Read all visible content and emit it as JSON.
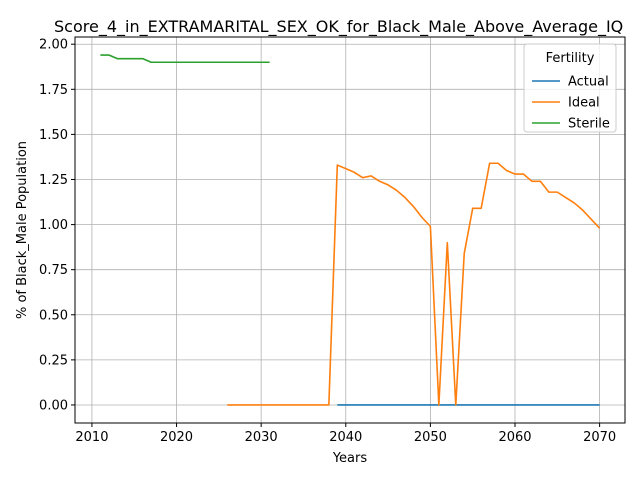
{
  "chart_data": {
    "type": "line",
    "title": "Score_4_in_EXTRAMARITAL_SEX_OK_for_Black_Male_Above_Average_IQ",
    "xlabel": "Years",
    "ylabel": "% of Black_Male Population",
    "xlim": [
      2008,
      2073
    ],
    "ylim": [
      -0.1,
      2.04
    ],
    "xticks": [
      2010,
      2020,
      2030,
      2040,
      2050,
      2060,
      2070
    ],
    "yticks": [
      0.0,
      0.25,
      0.5,
      0.75,
      1.0,
      1.25,
      1.5,
      1.75,
      2.0
    ],
    "ytick_labels": [
      "0.00",
      "0.25",
      "0.50",
      "0.75",
      "1.00",
      "1.25",
      "1.50",
      "1.75",
      "2.00"
    ],
    "grid": true,
    "legend": {
      "title": "Fertility",
      "placement": "top-right"
    },
    "series": [
      {
        "name": "Actual",
        "color": "#1f77b4",
        "x": [
          2039,
          2045,
          2050,
          2055,
          2060,
          2065,
          2070
        ],
        "y": [
          0.0,
          0.0,
          0.0,
          0.0,
          0.0,
          0.0,
          0.0
        ]
      },
      {
        "name": "Ideal",
        "color": "#ff7f0e",
        "x": [
          2026,
          2030,
          2035,
          2038,
          2039,
          2040,
          2041,
          2042,
          2043,
          2044,
          2045,
          2046,
          2047,
          2048,
          2049,
          2050,
          2051,
          2052,
          2053,
          2054,
          2055,
          2056,
          2057,
          2058,
          2059,
          2060,
          2061,
          2062,
          2063,
          2064,
          2065,
          2066,
          2067,
          2068,
          2069,
          2070
        ],
        "y": [
          0.0,
          0.0,
          0.0,
          0.0,
          1.33,
          1.31,
          1.29,
          1.26,
          1.27,
          1.24,
          1.22,
          1.19,
          1.15,
          1.1,
          1.04,
          0.99,
          0.0,
          0.9,
          0.0,
          0.84,
          1.09,
          1.09,
          1.34,
          1.34,
          1.3,
          1.28,
          1.28,
          1.24,
          1.24,
          1.18,
          1.18,
          1.15,
          1.12,
          1.08,
          1.03,
          0.98
        ]
      },
      {
        "name": "Sterile",
        "color": "#2ca02c",
        "x": [
          2011,
          2012,
          2013,
          2014,
          2015,
          2016,
          2017,
          2018,
          2019,
          2020,
          2021,
          2022,
          2023,
          2024,
          2025,
          2026,
          2027,
          2028,
          2029,
          2030,
          2031
        ],
        "y": [
          1.94,
          1.94,
          1.92,
          1.92,
          1.92,
          1.92,
          1.9,
          1.9,
          1.9,
          1.9,
          1.9,
          1.9,
          1.9,
          1.9,
          1.9,
          1.9,
          1.9,
          1.9,
          1.9,
          1.9,
          1.9
        ]
      }
    ]
  }
}
